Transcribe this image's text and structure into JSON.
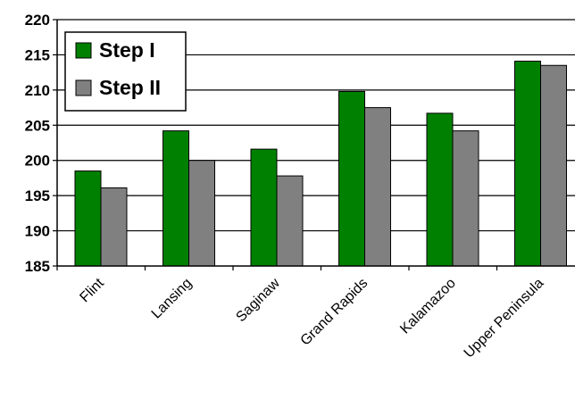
{
  "chart_data": {
    "type": "bar",
    "title": "",
    "xlabel": "",
    "ylabel": "",
    "categories": [
      "Flint",
      "Lansing",
      "Saginaw",
      "Grand Rapids",
      "Kalamazoo",
      "Upper Peninsula"
    ],
    "series": [
      {
        "name": "Step I",
        "color": "#008000",
        "values": [
          198.5,
          204.2,
          201.6,
          209.8,
          206.7,
          214.1
        ]
      },
      {
        "name": "Step II",
        "color": "#808080",
        "values": [
          196.1,
          200.0,
          197.8,
          207.5,
          204.2,
          213.5
        ]
      }
    ],
    "ylim": [
      185,
      220
    ],
    "yticks": [
      "185",
      "190",
      "195",
      "200",
      "205",
      "210",
      "215",
      "220"
    ],
    "grid": true,
    "legend_position": "top-left"
  }
}
